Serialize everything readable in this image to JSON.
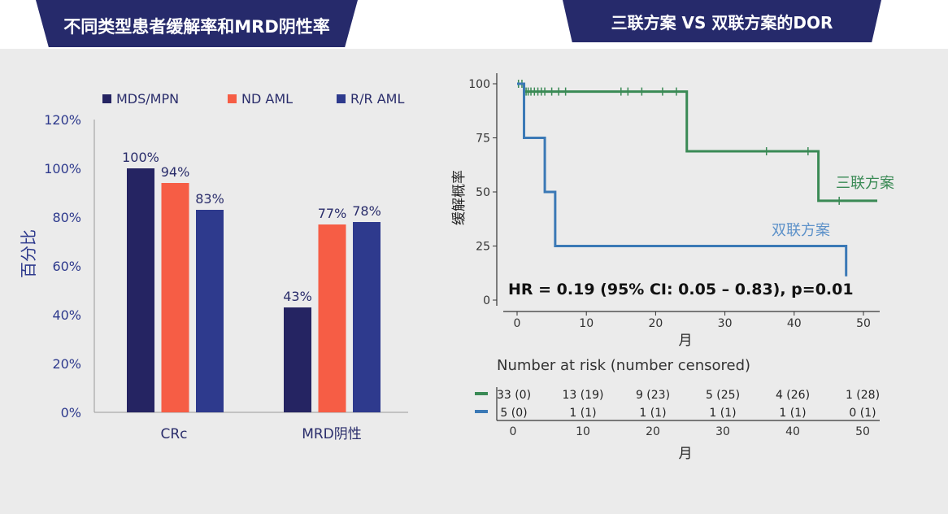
{
  "header": {
    "left_title": "不同类型患者缓解率和MRD阴性率",
    "right_title": "三联方案 VS 双联方案的DOR"
  },
  "colors": {
    "banner": "#262a6b",
    "mds_mpn": "#252462",
    "nd_aml": "#f65d45",
    "rr_aml": "#2e3a8d",
    "triplet": "#3a8a55",
    "doublet": "#3b79b6",
    "axis_text": "#2e3a8d"
  },
  "chart_data": [
    {
      "type": "bar",
      "categories": [
        "CRc",
        "MRD阴性"
      ],
      "series": [
        {
          "name": "MDS/MPN",
          "values": [
            100,
            43
          ],
          "labels": [
            "100%",
            "43%"
          ]
        },
        {
          "name": "ND AML",
          "values": [
            94,
            77
          ],
          "labels": [
            "94%",
            "77%"
          ]
        },
        {
          "name": "R/R AML",
          "values": [
            83,
            78
          ],
          "labels": [
            "83%",
            "78%"
          ]
        }
      ],
      "ylabel": "百分比",
      "ylim": [
        0,
        120
      ],
      "yticks": [
        "0%",
        "20%",
        "40%",
        "60%",
        "80%",
        "100%",
        "120%"
      ],
      "legend_position": "top"
    },
    {
      "type": "line",
      "subtype": "kaplan-meier",
      "ylabel": "缓解概率",
      "xlabel": "月",
      "xlim": [
        0,
        52
      ],
      "ylim": [
        0,
        100
      ],
      "xticks": [
        "0",
        "10",
        "20",
        "30",
        "40",
        "50"
      ],
      "yticks": [
        "0",
        "25",
        "50",
        "75",
        "100"
      ],
      "series": [
        {
          "name": "三联方案",
          "steps": [
            [
              0,
              100
            ],
            [
              1,
              100
            ],
            [
              1,
              96.4
            ],
            [
              24.5,
              96.4
            ],
            [
              24.5,
              68.8
            ],
            [
              43.5,
              68.8
            ],
            [
              43.5,
              45.9
            ],
            [
              52,
              45.9
            ]
          ],
          "censored": [
            [
              0.2,
              100
            ],
            [
              0.7,
              100
            ],
            [
              1.3,
              96.4
            ],
            [
              1.6,
              96.4
            ],
            [
              2,
              96.4
            ],
            [
              2.5,
              96.4
            ],
            [
              3,
              96.4
            ],
            [
              3.5,
              96.4
            ],
            [
              4,
              96.4
            ],
            [
              5,
              96.4
            ],
            [
              6,
              96.4
            ],
            [
              7,
              96.4
            ],
            [
              15,
              96.4
            ],
            [
              16,
              96.4
            ],
            [
              18,
              96.4
            ],
            [
              21,
              96.4
            ],
            [
              23,
              96.4
            ],
            [
              36,
              68.8
            ],
            [
              42,
              68.8
            ],
            [
              46.5,
              45.9
            ]
          ]
        },
        {
          "name": "双联方案",
          "steps": [
            [
              0,
              100
            ],
            [
              1,
              100
            ],
            [
              1,
              75
            ],
            [
              4,
              75
            ],
            [
              4,
              50
            ],
            [
              5.5,
              50
            ],
            [
              5.5,
              25
            ],
            [
              47.5,
              25
            ],
            [
              47.5,
              11
            ]
          ],
          "censored": []
        }
      ],
      "annotation": "HR = 0.19 (95% CI: 0.05 – 0.83), p=0.01",
      "risk_table": {
        "title": "Number at risk (number censored)",
        "xlabel": "月",
        "times": [
          "0",
          "10",
          "20",
          "30",
          "40",
          "50"
        ],
        "rows": [
          {
            "series": "三联方案",
            "values": [
              "33 (0)",
              "13 (19)",
              "9 (23)",
              "5 (25)",
              "4 (26)",
              "1 (28)"
            ]
          },
          {
            "series": "双联方案",
            "values": [
              "5 (0)",
              "1 (1)",
              "1 (1)",
              "1 (1)",
              "1 (1)",
              "0 (1)"
            ]
          }
        ]
      }
    }
  ]
}
